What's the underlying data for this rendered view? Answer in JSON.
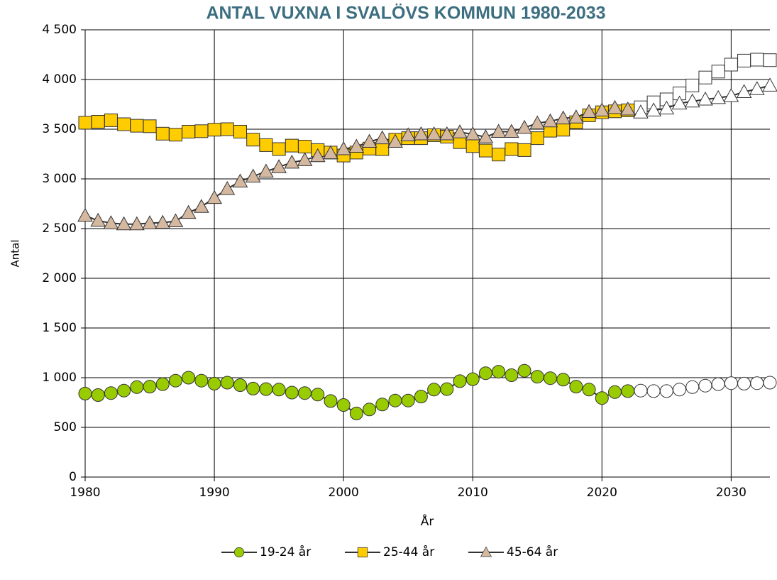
{
  "chart_data": {
    "type": "line",
    "title": "ANTAL VUXNA I SVALÖVS KOMMUN 1980-2033",
    "x_label": "År",
    "y_label": "Antal",
    "x": [
      1980,
      1981,
      1982,
      1983,
      1984,
      1985,
      1986,
      1987,
      1988,
      1989,
      1990,
      1991,
      1992,
      1993,
      1994,
      1995,
      1996,
      1997,
      1998,
      1999,
      2000,
      2001,
      2002,
      2003,
      2004,
      2005,
      2006,
      2007,
      2008,
      2009,
      2010,
      2011,
      2012,
      2013,
      2014,
      2015,
      2016,
      2017,
      2018,
      2019,
      2020,
      2021,
      2022,
      2023,
      2024,
      2025,
      2026,
      2027,
      2028,
      2029,
      2030,
      2031,
      2032,
      2033
    ],
    "projection_start": 2023,
    "series": [
      {
        "name": "19-24 år",
        "color": "#99cc00",
        "marker": "circle",
        "values": [
          840,
          825,
          845,
          870,
          905,
          910,
          935,
          970,
          1000,
          970,
          940,
          950,
          925,
          890,
          885,
          880,
          850,
          845,
          830,
          765,
          725,
          640,
          680,
          730,
          770,
          770,
          810,
          880,
          885,
          965,
          985,
          1045,
          1060,
          1025,
          1070,
          1010,
          995,
          980,
          910,
          880,
          795,
          855,
          865,
          870,
          865,
          865,
          880,
          905,
          920,
          935,
          945,
          940,
          945,
          950
        ]
      },
      {
        "name": "25-44 år",
        "color": "#ffcc00",
        "marker": "square",
        "values": [
          3565,
          3575,
          3590,
          3550,
          3535,
          3530,
          3455,
          3445,
          3475,
          3480,
          3495,
          3500,
          3475,
          3395,
          3340,
          3300,
          3335,
          3325,
          3290,
          3265,
          3235,
          3265,
          3305,
          3300,
          3395,
          3410,
          3410,
          3440,
          3425,
          3370,
          3330,
          3285,
          3245,
          3300,
          3290,
          3410,
          3485,
          3495,
          3570,
          3640,
          3670,
          3680,
          3690,
          3720,
          3770,
          3800,
          3860,
          3940,
          4020,
          4080,
          4150,
          4190,
          4200,
          4195
        ]
      },
      {
        "name": "45-64 år",
        "color": "#d4b8a0",
        "marker": "triangle",
        "values": [
          2630,
          2580,
          2555,
          2545,
          2545,
          2555,
          2560,
          2575,
          2660,
          2720,
          2810,
          2900,
          2975,
          3025,
          3075,
          3120,
          3165,
          3190,
          3230,
          3260,
          3300,
          3325,
          3375,
          3410,
          3375,
          3440,
          3450,
          3450,
          3450,
          3470,
          3450,
          3420,
          3475,
          3475,
          3515,
          3560,
          3580,
          3610,
          3620,
          3675,
          3690,
          3715,
          3700,
          3670,
          3690,
          3710,
          3760,
          3780,
          3800,
          3815,
          3835,
          3875,
          3905,
          3940
        ]
      }
    ],
    "xlim": [
      1980,
      2033
    ],
    "xticks": [
      1980,
      1990,
      2000,
      2010,
      2020,
      2030
    ],
    "ylim": [
      0,
      4500
    ],
    "yticks": [
      0,
      500,
      {
        "value": 1000,
        "label": "1 000"
      },
      {
        "value": 1500,
        "label": "1 500"
      },
      {
        "value": 2000,
        "label": "2 000"
      },
      {
        "value": 2500,
        "label": "2 500"
      },
      {
        "value": 3000,
        "label": "3 000"
      },
      {
        "value": 3500,
        "label": "3 500"
      },
      {
        "value": 4000,
        "label": "4 000"
      },
      {
        "value": 4500,
        "label": "4 500"
      }
    ],
    "grid": true,
    "legend": "bottom"
  }
}
